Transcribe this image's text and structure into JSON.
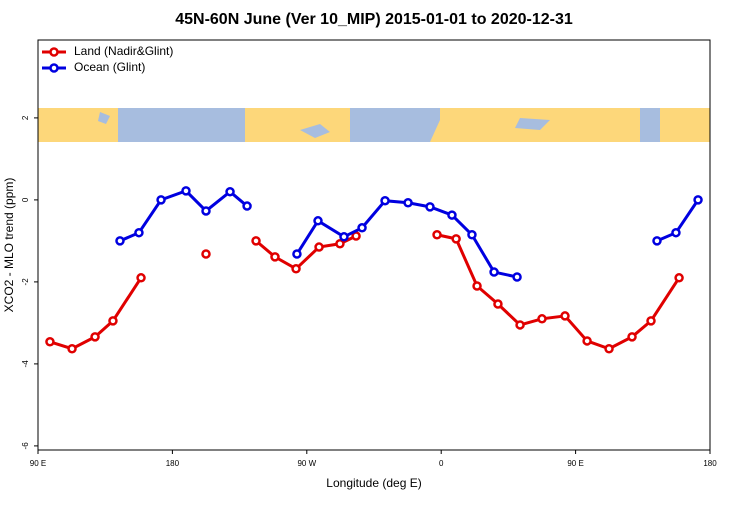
{
  "chart_data": {
    "type": "line",
    "title": "45N-60N June (Ver 10_MIP)   2015-01-01 to 2020-12-31",
    "x_label": "Longitude (deg E)",
    "y_label": "XCO2 - MLO trend (ppm)",
    "xlim": [
      90,
      540
    ],
    "ylim": [
      -6.1,
      3.9
    ],
    "xticks": [
      {
        "value": 90,
        "label": "90 E"
      },
      180,
      {
        "value": 270,
        "label": "90 W"
      },
      {
        "value": 360,
        "label": "0"
      },
      {
        "value": 450,
        "label": "90 E"
      },
      {
        "value": 540,
        "label": "180"
      }
    ],
    "yticks": [
      -6,
      -4,
      -2,
      0,
      2
    ],
    "legend": "top-left",
    "series": [
      {
        "name": "Land (Nadir&Glint)",
        "color": "#e00000",
        "x": [
          98,
          112.8,
          128.2,
          140.2,
          159,
          null,
          202.5,
          null,
          236,
          248.7,
          262.8,
          278.2,
          292.2,
          303,
          null,
          357.2,
          370,
          384,
          398,
          412.8,
          427.5,
          442.9,
          457.7,
          472.4,
          487.8,
          500.5,
          519.3
        ],
        "values": [
          -3.46,
          -3.63,
          -3.34,
          -2.95,
          -1.9,
          null,
          -1.32,
          null,
          -1.0,
          -1.39,
          -1.68,
          -1.15,
          -1.07,
          -0.88,
          null,
          -0.85,
          -0.95,
          -2.1,
          -2.54,
          -3.05,
          -2.9,
          -2.83,
          -3.44,
          -3.63,
          -3.34,
          -2.95,
          -1.9
        ]
      },
      {
        "name": "Ocean (Glint)",
        "color": "#0000e0",
        "x": [
          144.9,
          157.6,
          172.4,
          189.1,
          202.5,
          218.6,
          230,
          null,
          263.4,
          277.5,
          294.9,
          307,
          322.4,
          337.8,
          352.5,
          367.2,
          380.6,
          395.4,
          410.8,
          null,
          504.5,
          517.2,
          532
        ],
        "values": [
          -1.0,
          -0.8,
          0.0,
          0.22,
          -0.27,
          0.2,
          -0.15,
          null,
          -1.32,
          -0.51,
          -0.9,
          -0.68,
          -0.02,
          -0.07,
          -0.17,
          -0.37,
          -0.85,
          -1.76,
          -1.88,
          null,
          -1.0,
          -0.8,
          0.0
        ]
      }
    ]
  }
}
